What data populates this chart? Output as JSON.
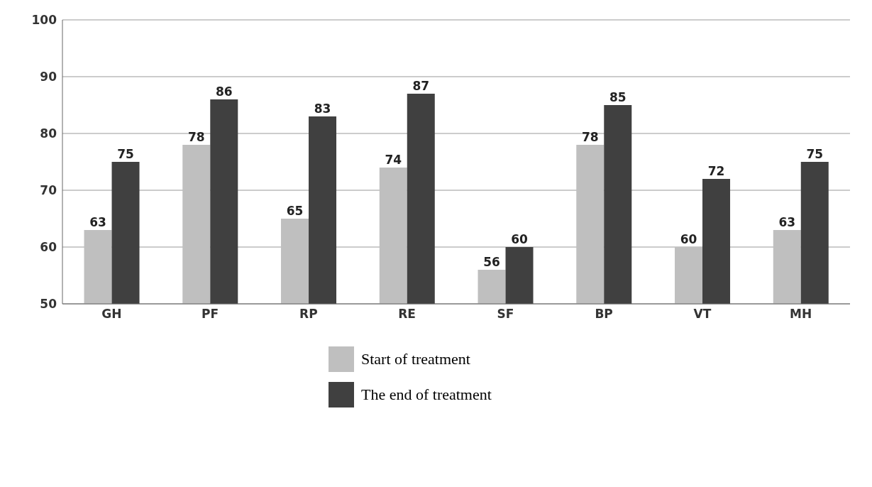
{
  "chart_data": {
    "type": "bar",
    "categories": [
      "GH",
      "PF",
      "RP",
      "RE",
      "SF",
      "BP",
      "VT",
      "MH"
    ],
    "series": [
      {
        "name": "Start of treatment",
        "color": "#bfbfbf",
        "values": [
          63,
          78,
          65,
          74,
          56,
          78,
          60,
          63
        ]
      },
      {
        "name": "The end of treatment",
        "color": "#404040",
        "values": [
          75,
          86,
          83,
          87,
          60,
          85,
          72,
          75
        ]
      }
    ],
    "ylim": [
      50,
      100
    ],
    "yticks": [
      50,
      60,
      70,
      80,
      90,
      100
    ],
    "grid": "y",
    "legend": "bottom",
    "data_labels": true
  }
}
